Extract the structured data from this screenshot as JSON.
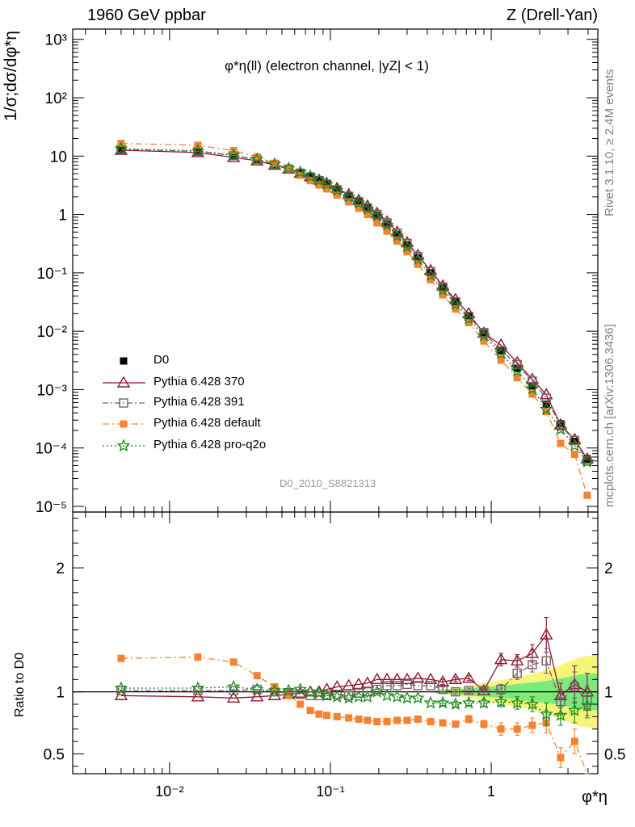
{
  "header": {
    "left": "1960 GeV ppbar",
    "right": "Z (Drell-Yan)"
  },
  "side_labels": {
    "rivet": "Rivet 3.1.10, ≥ 2.4M events",
    "mcplots": "mcplots.cern.ch [arXiv:1306.3436]"
  },
  "analysis_id": "D0_2010_S8821313",
  "colors": {
    "D0": "#000000",
    "Pythia 6.428 370": "#8b1a2b",
    "Pythia 6.428 391": "#7a5c6e",
    "Pythia 6.428 default": "#f58231",
    "Pythia 6.428 pro-q2o": "#1a8a1a",
    "band_inner": "#7de87d",
    "band_outer": "#f5f57a"
  },
  "chart_data": [
    {
      "type": "line",
      "panel": "main",
      "title": "φ*η(ll) (electron channel, |yZ| < 1)",
      "ylabel": "1/σ;dσ/dφ*η",
      "xlabel": "φ*η",
      "xscale": "log",
      "yscale": "log",
      "xlim": [
        0.0025,
        4.6
      ],
      "ylim": [
        8e-06,
        1500
      ],
      "x_ticks": [
        "10⁻²",
        "10⁻¹",
        "1"
      ],
      "y_ticks": [
        "10⁻⁵",
        "10⁻⁴",
        "10⁻³",
        "10⁻²",
        "10⁻¹",
        "1",
        "10",
        "10²",
        "10³"
      ],
      "legend_position": "bottom-left",
      "x": [
        0.005,
        0.015,
        0.025,
        0.035,
        0.045,
        0.055,
        0.065,
        0.075,
        0.085,
        0.095,
        0.11,
        0.13,
        0.15,
        0.17,
        0.195,
        0.225,
        0.26,
        0.3,
        0.35,
        0.42,
        0.5,
        0.6,
        0.725,
        0.9,
        1.15,
        1.45,
        1.8,
        2.2,
        2.7,
        3.3,
        3.95
      ],
      "series": [
        {
          "name": "D0",
          "marker": "square-filled",
          "values": [
            13,
            12,
            10,
            8.6,
            7.2,
            6.1,
            5.2,
            4.5,
            3.9,
            3.4,
            2.7,
            2.1,
            1.65,
            1.3,
            0.95,
            0.68,
            0.45,
            0.3,
            0.18,
            0.1,
            0.056,
            0.032,
            0.018,
            0.0092,
            0.0046,
            0.0023,
            0.00115,
            0.00056,
            0.00026,
            0.00013,
            6.5e-05
          ]
        },
        {
          "name": "Pythia 6.428 370",
          "marker": "triangle-open",
          "values": [
            12.6,
            11.5,
            9.5,
            8.3,
            7.0,
            6.0,
            5.1,
            4.45,
            3.9,
            3.4,
            2.8,
            2.2,
            1.75,
            1.4,
            1.05,
            0.75,
            0.5,
            0.33,
            0.2,
            0.11,
            0.06,
            0.035,
            0.02,
            0.0093,
            0.0058,
            0.0029,
            0.0015,
            0.00082,
            0.00025,
            0.00014,
            6.5e-05
          ]
        },
        {
          "name": "Pythia 6.428 391",
          "marker": "square-open",
          "values": [
            13.1,
            12.1,
            10.2,
            8.8,
            7.2,
            6.0,
            5.1,
            4.4,
            3.8,
            3.3,
            2.65,
            2.05,
            1.65,
            1.3,
            1.0,
            0.72,
            0.48,
            0.32,
            0.19,
            0.105,
            0.057,
            0.032,
            0.018,
            0.0095,
            0.0047,
            0.0027,
            0.0014,
            0.00071,
            0.00024,
            0.000135,
            6e-05
          ]
        },
        {
          "name": "Pythia 6.428 default",
          "marker": "square-filled",
          "values": [
            16.5,
            15.3,
            12.4,
            9.7,
            7.5,
            6.0,
            4.7,
            3.8,
            3.2,
            2.75,
            2.15,
            1.65,
            1.28,
            1.0,
            0.72,
            0.52,
            0.35,
            0.23,
            0.14,
            0.076,
            0.042,
            0.024,
            0.014,
            0.0068,
            0.0032,
            0.0016,
            0.00084,
            0.00042,
            0.00012,
            7.8e-05,
            1.55e-05
          ]
        },
        {
          "name": "Pythia 6.428 pro-q2o",
          "marker": "star",
          "values": [
            13.4,
            12.3,
            10.4,
            8.8,
            7.3,
            6.15,
            5.3,
            4.5,
            3.85,
            3.3,
            2.6,
            2.0,
            1.58,
            1.25,
            0.94,
            0.66,
            0.43,
            0.28,
            0.17,
            0.091,
            0.051,
            0.029,
            0.0164,
            0.0084,
            0.0042,
            0.0021,
            0.00104,
            0.00046,
            0.00021,
            0.00011,
            5.8e-05
          ]
        }
      ]
    },
    {
      "type": "line",
      "panel": "ratio",
      "ylabel": "Ratio to D0",
      "xlabel": "φ*η",
      "xscale": "log",
      "xlim": [
        0.0025,
        4.6
      ],
      "ylim": [
        0.34,
        2.45
      ],
      "y_ticks": [
        "0.5",
        "1",
        "2"
      ],
      "x": [
        0.005,
        0.015,
        0.025,
        0.035,
        0.045,
        0.055,
        0.065,
        0.075,
        0.085,
        0.095,
        0.11,
        0.13,
        0.15,
        0.17,
        0.195,
        0.225,
        0.26,
        0.3,
        0.35,
        0.42,
        0.5,
        0.6,
        0.725,
        0.9,
        1.15,
        1.45,
        1.8,
        2.2,
        2.7,
        3.3,
        3.95
      ],
      "band": {
        "x": [
          0.45,
          0.6,
          0.75,
          0.9,
          1.2,
          1.6,
          2.0,
          2.5,
          3.0,
          3.6,
          4.6
        ],
        "inner_low": [
          0.99,
          0.98,
          0.97,
          0.96,
          0.95,
          0.93,
          0.92,
          0.9,
          0.88,
          0.86,
          0.85
        ],
        "inner_high": [
          1.01,
          1.02,
          1.03,
          1.04,
          1.05,
          1.07,
          1.08,
          1.1,
          1.12,
          1.14,
          1.15
        ],
        "outer_low": [
          0.99,
          0.97,
          0.95,
          0.93,
          0.9,
          0.87,
          0.84,
          0.8,
          0.76,
          0.72,
          0.7
        ],
        "outer_high": [
          1.01,
          1.03,
          1.05,
          1.07,
          1.1,
          1.13,
          1.16,
          1.2,
          1.24,
          1.28,
          1.3
        ]
      },
      "series": [
        {
          "name": "Pythia 6.428 370",
          "marker": "triangle-open",
          "values": [
            0.97,
            0.96,
            0.95,
            0.96,
            0.97,
            0.98,
            0.99,
            1.0,
            1.0,
            1.02,
            1.04,
            1.05,
            1.06,
            1.07,
            1.1,
            1.1,
            1.1,
            1.1,
            1.11,
            1.1,
            1.08,
            1.1,
            1.11,
            1.01,
            1.26,
            1.25,
            1.31,
            1.46,
            0.97,
            1.06,
            1.0
          ],
          "err": [
            0.01,
            0.01,
            0.01,
            0.01,
            0.01,
            0.01,
            0.01,
            0.01,
            0.01,
            0.01,
            0.01,
            0.01,
            0.01,
            0.01,
            0.01,
            0.01,
            0.01,
            0.01,
            0.01,
            0.01,
            0.02,
            0.02,
            0.02,
            0.03,
            0.05,
            0.05,
            0.07,
            0.14,
            0.1,
            0.15,
            0.15
          ]
        },
        {
          "name": "Pythia 6.428 391",
          "marker": "square-open",
          "values": [
            1.01,
            1.01,
            1.01,
            1.02,
            1.0,
            0.99,
            0.98,
            0.97,
            0.97,
            0.97,
            0.98,
            0.97,
            0.99,
            1.0,
            1.02,
            1.05,
            1.05,
            1.06,
            1.05,
            1.05,
            1.02,
            1.0,
            1.01,
            1.01,
            1.02,
            1.15,
            1.22,
            1.25,
            0.92,
            1.04,
            0.93
          ],
          "err": [
            0.01,
            0.01,
            0.01,
            0.01,
            0.01,
            0.01,
            0.01,
            0.01,
            0.01,
            0.01,
            0.01,
            0.01,
            0.01,
            0.01,
            0.01,
            0.01,
            0.01,
            0.01,
            0.01,
            0.01,
            0.02,
            0.02,
            0.02,
            0.03,
            0.04,
            0.05,
            0.06,
            0.1,
            0.1,
            0.12,
            0.12
          ]
        },
        {
          "name": "Pythia 6.428 default",
          "marker": "square-filled",
          "values": [
            1.27,
            1.28,
            1.24,
            1.13,
            1.04,
            0.97,
            0.9,
            0.85,
            0.82,
            0.81,
            0.8,
            0.79,
            0.78,
            0.77,
            0.76,
            0.76,
            0.77,
            0.77,
            0.78,
            0.76,
            0.75,
            0.74,
            0.78,
            0.74,
            0.7,
            0.7,
            0.73,
            0.75,
            0.47,
            0.6,
            0.24
          ],
          "err": [
            0.01,
            0.01,
            0.01,
            0.01,
            0.01,
            0.01,
            0.01,
            0.01,
            0.01,
            0.01,
            0.01,
            0.01,
            0.01,
            0.01,
            0.01,
            0.01,
            0.01,
            0.01,
            0.01,
            0.01,
            0.02,
            0.02,
            0.03,
            0.03,
            0.05,
            0.05,
            0.06,
            0.08,
            0.08,
            0.1,
            0.1
          ]
        },
        {
          "name": "Pythia 6.428 pro-q2o",
          "marker": "star",
          "values": [
            1.03,
            1.03,
            1.04,
            1.02,
            1.01,
            1.01,
            1.02,
            1.0,
            0.99,
            0.97,
            0.96,
            0.95,
            0.96,
            0.96,
            1.0,
            0.97,
            0.96,
            0.95,
            0.95,
            0.91,
            0.91,
            0.9,
            0.91,
            0.91,
            0.92,
            0.91,
            0.9,
            0.82,
            0.81,
            0.85,
            0.89
          ],
          "err": [
            0.01,
            0.01,
            0.01,
            0.01,
            0.01,
            0.01,
            0.01,
            0.01,
            0.01,
            0.01,
            0.01,
            0.01,
            0.01,
            0.01,
            0.01,
            0.01,
            0.01,
            0.01,
            0.01,
            0.01,
            0.02,
            0.02,
            0.02,
            0.03,
            0.04,
            0.05,
            0.06,
            0.09,
            0.08,
            0.1,
            0.1
          ]
        }
      ]
    }
  ]
}
